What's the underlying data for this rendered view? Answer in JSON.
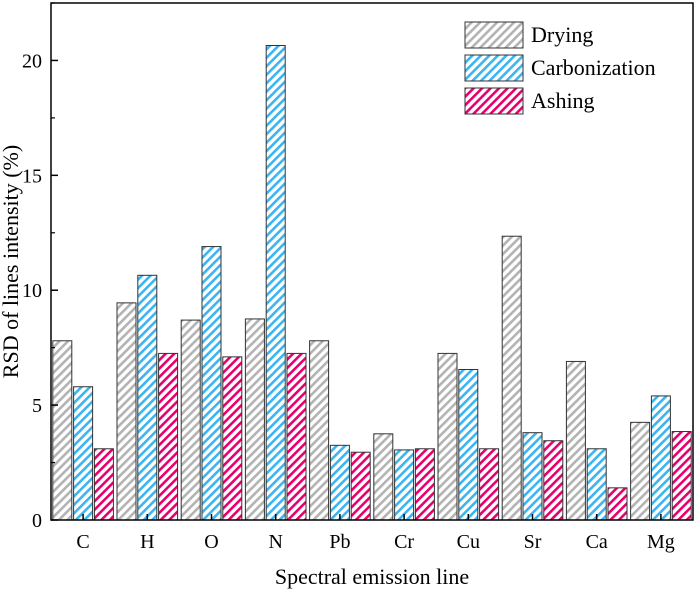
{
  "chart_data": {
    "type": "bar",
    "title": "",
    "xlabel": "Spectral emission line",
    "ylabel": "RSD of lines intensity (%)",
    "categories": [
      "C",
      "H",
      "O",
      "N",
      "Pb",
      "Cr",
      "Cu",
      "Sr",
      "Ca",
      "Mg"
    ],
    "ylim": [
      0,
      22.5
    ],
    "yticks": [
      0,
      5,
      10,
      15,
      20
    ],
    "grid": false,
    "legend_position": "top-right",
    "series": [
      {
        "name": "Drying",
        "color": "#b3b3b3",
        "pattern": "hatched",
        "values": [
          7.8,
          9.45,
          8.7,
          8.75,
          7.8,
          3.75,
          7.25,
          12.35,
          6.9,
          4.25
        ]
      },
      {
        "name": "Carbonization",
        "color": "#3cb4f0",
        "pattern": "hatched",
        "values": [
          5.8,
          10.65,
          11.9,
          20.65,
          3.25,
          3.05,
          6.55,
          3.8,
          3.1,
          5.4
        ]
      },
      {
        "name": "Ashing",
        "color": "#e6006e",
        "pattern": "hatched",
        "values": [
          3.1,
          7.25,
          7.1,
          7.25,
          2.95,
          3.1,
          3.1,
          3.45,
          1.4,
          3.85
        ]
      }
    ]
  }
}
